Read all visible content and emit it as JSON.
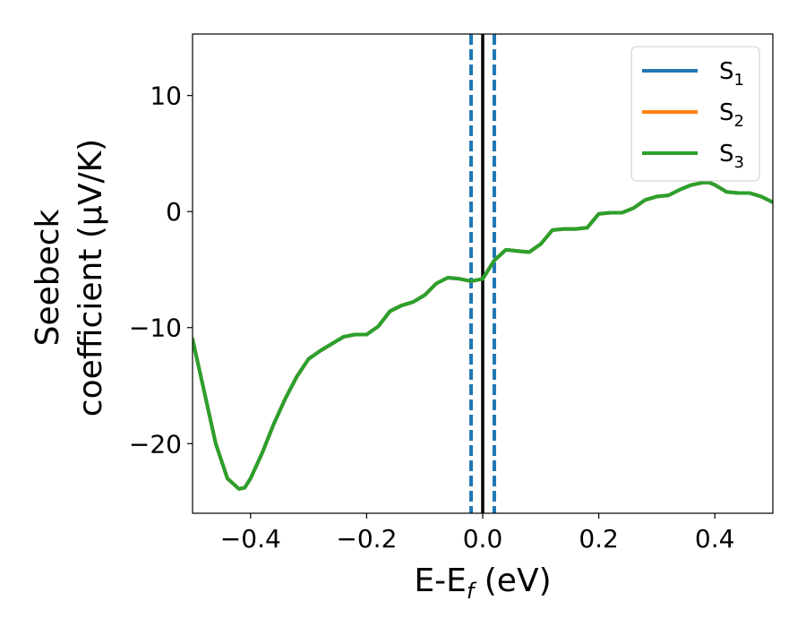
{
  "chart_data": {
    "type": "line",
    "xlabel": "E-E_f (eV)",
    "xlabel_parts": {
      "base": "E-E",
      "sub": "f",
      "tail": " (eV)"
    },
    "ylabel_line1": "Seebeck",
    "ylabel_line2": "coefficient  (μV/K)",
    "xlim": [
      -0.5,
      0.5
    ],
    "ylim": [
      -26,
      15.3
    ],
    "x_ticks": [
      -0.4,
      -0.2,
      0.0,
      0.2,
      0.4
    ],
    "x_tick_labels": [
      "−0.4",
      "−0.2",
      "0.0",
      "0.2",
      "0.4"
    ],
    "y_ticks": [
      10,
      0,
      -10,
      -20
    ],
    "y_tick_labels": [
      "10",
      "0",
      "−10",
      "−20"
    ],
    "legend_position": "top-right",
    "grid": false,
    "vlines": [
      {
        "x": 0.0,
        "style": "solid",
        "color": "#000000"
      },
      {
        "x": -0.02,
        "style": "dashed",
        "color": "#1f77b4"
      },
      {
        "x": 0.02,
        "style": "dashed",
        "color": "#1f77b4"
      }
    ],
    "series": [
      {
        "name": "S",
        "sub": "1",
        "color": "#1f77b4"
      },
      {
        "name": "S",
        "sub": "2",
        "color": "#ff7f0e"
      },
      {
        "name": "S",
        "sub": "3",
        "color": "#2ca02c"
      }
    ],
    "x": [
      -0.5,
      -0.48,
      -0.46,
      -0.44,
      -0.42,
      -0.41,
      -0.4,
      -0.38,
      -0.36,
      -0.34,
      -0.32,
      -0.3,
      -0.28,
      -0.26,
      -0.24,
      -0.22,
      -0.2,
      -0.18,
      -0.16,
      -0.14,
      -0.12,
      -0.1,
      -0.08,
      -0.06,
      -0.04,
      -0.02,
      0.0,
      0.02,
      0.04,
      0.06,
      0.08,
      0.1,
      0.12,
      0.14,
      0.16,
      0.18,
      0.2,
      0.22,
      0.24,
      0.26,
      0.28,
      0.3,
      0.32,
      0.34,
      0.36,
      0.38,
      0.39,
      0.4,
      0.42,
      0.44,
      0.46,
      0.48,
      0.5
    ],
    "y": [
      -11,
      -15.5,
      -20,
      -23,
      -23.9,
      -23.8,
      -23,
      -20.8,
      -18.3,
      -16.1,
      -14.2,
      -12.7,
      -12,
      -11.4,
      -10.8,
      -10.6,
      -10.6,
      -9.9,
      -8.6,
      -8.1,
      -7.8,
      -7.2,
      -6.2,
      -5.7,
      -5.8,
      -6.0,
      -5.8,
      -4.2,
      -3.3,
      -3.4,
      -3.5,
      -2.8,
      -1.6,
      -1.5,
      -1.5,
      -1.4,
      -0.2,
      -0.1,
      -0.1,
      0.3,
      1.0,
      1.3,
      1.4,
      1.9,
      2.3,
      2.5,
      2.5,
      2.3,
      1.7,
      1.6,
      1.6,
      1.3,
      0.8
    ]
  }
}
